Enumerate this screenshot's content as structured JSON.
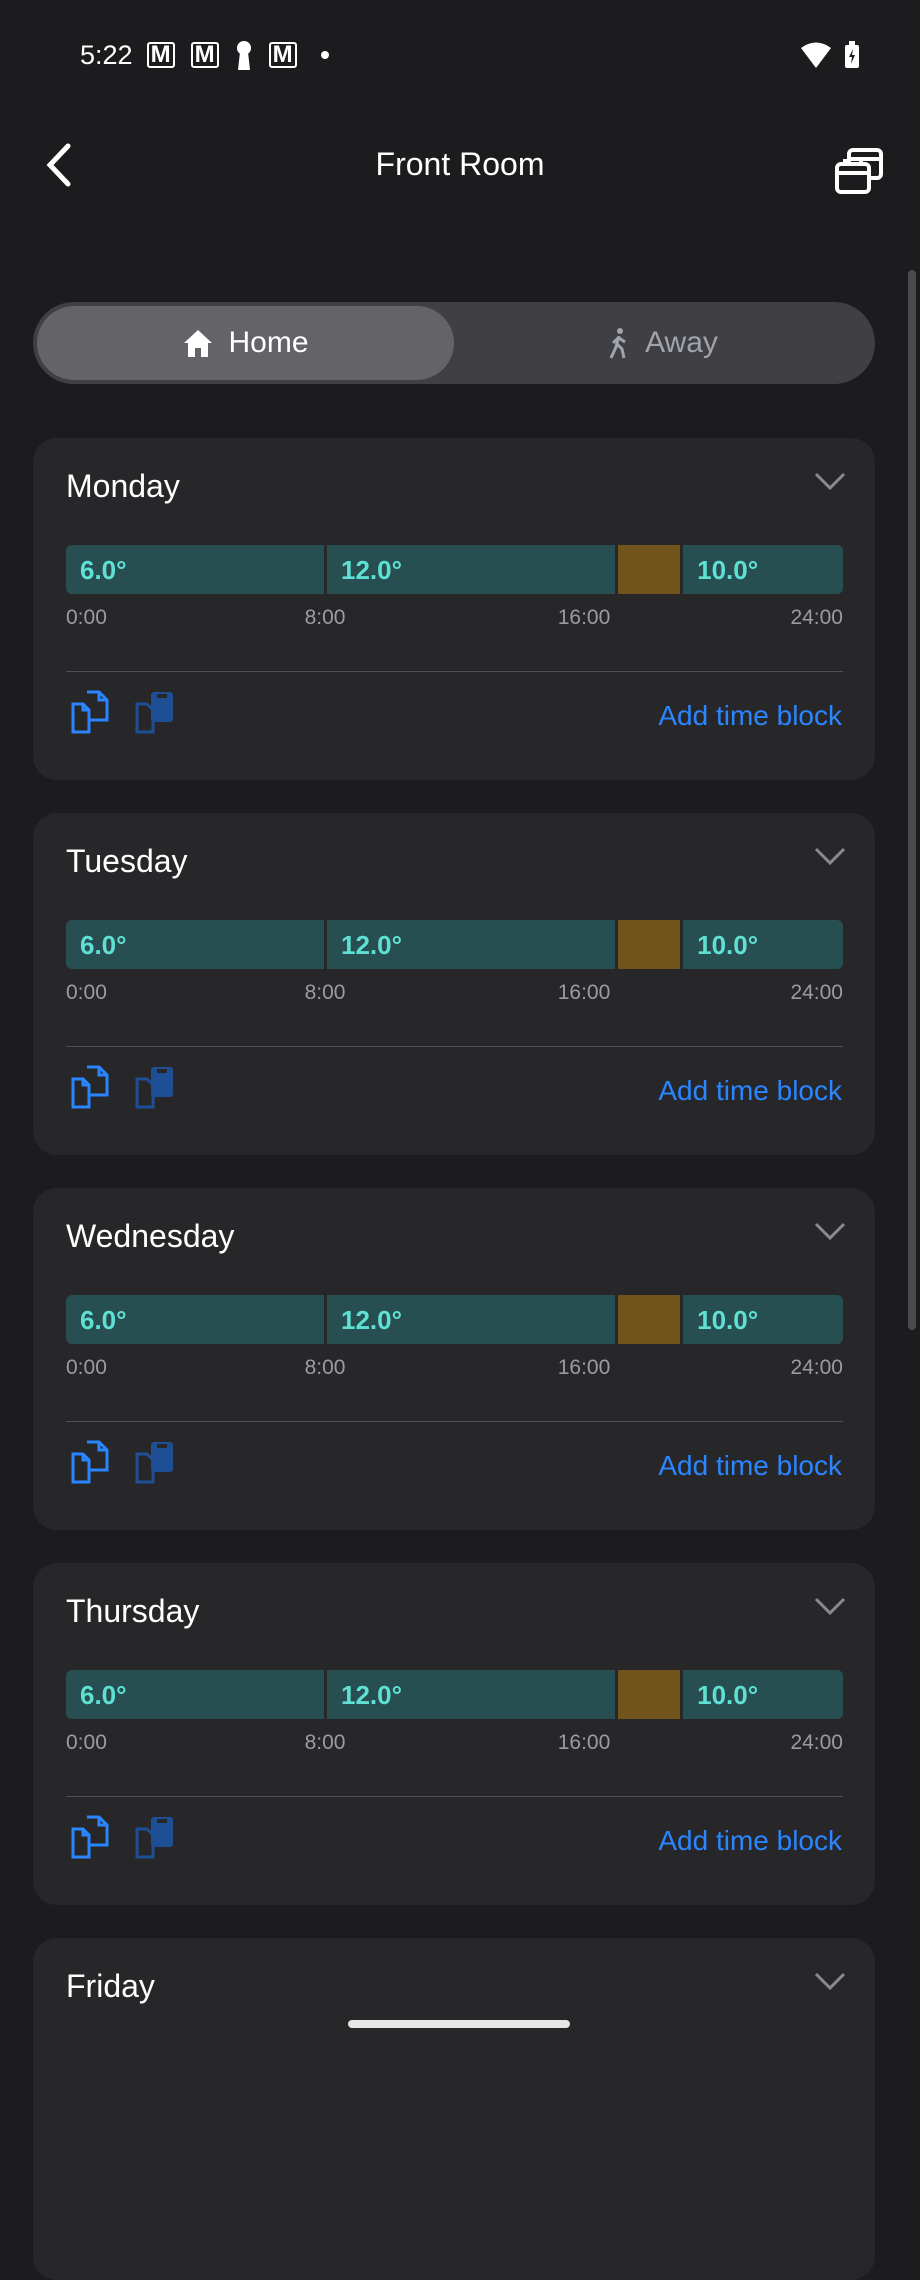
{
  "status_bar": {
    "time": "5:22",
    "notifications": [
      "gmail-icon",
      "gmail-icon",
      "keyhole-icon",
      "gmail-icon",
      "dot-icon"
    ],
    "right_icons": [
      "wifi-icon",
      "battery-charging-icon"
    ]
  },
  "header": {
    "title": "Front Room"
  },
  "mode_toggle": {
    "options": [
      {
        "label": "Home",
        "icon": "home-icon",
        "selected": true
      },
      {
        "label": "Away",
        "icon": "walking-icon",
        "selected": false
      }
    ]
  },
  "colors": {
    "block_teal": "#274e51",
    "block_text": "#5fe0d4",
    "block_gold": "#71531c",
    "link": "#2a86ff"
  },
  "tick_labels": [
    "0:00",
    "8:00",
    "16:00",
    "24:00"
  ],
  "days": [
    {
      "name": "Monday",
      "blocks": [
        {
          "start": 0,
          "end": 8,
          "label": "6.0°",
          "type": "temp"
        },
        {
          "start": 8,
          "end": 17,
          "label": "12.0°",
          "type": "temp"
        },
        {
          "start": 17,
          "end": 19,
          "label": "",
          "type": "gold"
        },
        {
          "start": 19,
          "end": 24,
          "label": "10.0°",
          "type": "temp"
        }
      ],
      "add_label": "Add time block"
    },
    {
      "name": "Tuesday",
      "blocks": [
        {
          "start": 0,
          "end": 8,
          "label": "6.0°",
          "type": "temp"
        },
        {
          "start": 8,
          "end": 17,
          "label": "12.0°",
          "type": "temp"
        },
        {
          "start": 17,
          "end": 19,
          "label": "",
          "type": "gold"
        },
        {
          "start": 19,
          "end": 24,
          "label": "10.0°",
          "type": "temp"
        }
      ],
      "add_label": "Add time block"
    },
    {
      "name": "Wednesday",
      "blocks": [
        {
          "start": 0,
          "end": 8,
          "label": "6.0°",
          "type": "temp"
        },
        {
          "start": 8,
          "end": 17,
          "label": "12.0°",
          "type": "temp"
        },
        {
          "start": 17,
          "end": 19,
          "label": "",
          "type": "gold"
        },
        {
          "start": 19,
          "end": 24,
          "label": "10.0°",
          "type": "temp"
        }
      ],
      "add_label": "Add time block"
    },
    {
      "name": "Thursday",
      "blocks": [
        {
          "start": 0,
          "end": 8,
          "label": "6.0°",
          "type": "temp"
        },
        {
          "start": 8,
          "end": 17,
          "label": "12.0°",
          "type": "temp"
        },
        {
          "start": 17,
          "end": 19,
          "label": "",
          "type": "gold"
        },
        {
          "start": 19,
          "end": 24,
          "label": "10.0°",
          "type": "temp"
        }
      ],
      "add_label": "Add time block"
    },
    {
      "name": "Friday"
    }
  ]
}
